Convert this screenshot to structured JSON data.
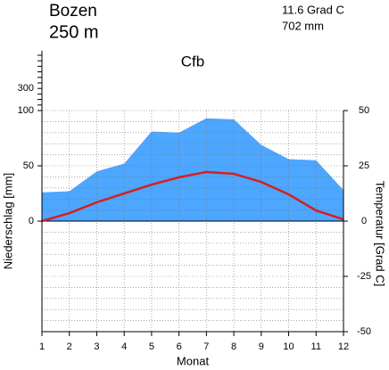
{
  "chart_data": {
    "type": "climate",
    "title": "Bozen",
    "subtitle": "250 m",
    "annotations": [
      "11.6 Grad C",
      "702 mm",
      "Cfb"
    ],
    "x_label": "Monat",
    "y_label": "Niederschlag [mm]",
    "y2_label": "Temperatur [Grad C]",
    "x": [
      1,
      2,
      3,
      4,
      5,
      6,
      7,
      8,
      9,
      10,
      11,
      12
    ],
    "xlim": [
      1,
      12
    ],
    "xticks": [
      1,
      2,
      3,
      4,
      5,
      6,
      7,
      8,
      9,
      10,
      11,
      12
    ],
    "ylim": [
      -100,
      640
    ],
    "scale_break": 100,
    "upper_scale": 0.1,
    "yticks": [
      0,
      50,
      100,
      300
    ],
    "yminorticks": [
      150,
      200,
      250,
      350,
      400,
      450,
      500,
      550,
      600
    ],
    "y2lim": [
      -50,
      50
    ],
    "y2ticks": [
      -50,
      -25,
      0,
      25,
      50
    ],
    "grid": true,
    "series": [
      {
        "axis": "y",
        "color": "#4da6ff",
        "values": [
          26,
          27,
          45,
          52,
          81,
          80,
          93,
          92,
          69,
          56,
          55,
          28
        ]
      },
      {
        "axis": "y2",
        "color": "#d42020",
        "values": [
          0,
          3.6,
          8.5,
          12.5,
          16.5,
          19.8,
          22.2,
          21.4,
          17.7,
          12.1,
          4.8,
          0.8
        ]
      }
    ]
  }
}
